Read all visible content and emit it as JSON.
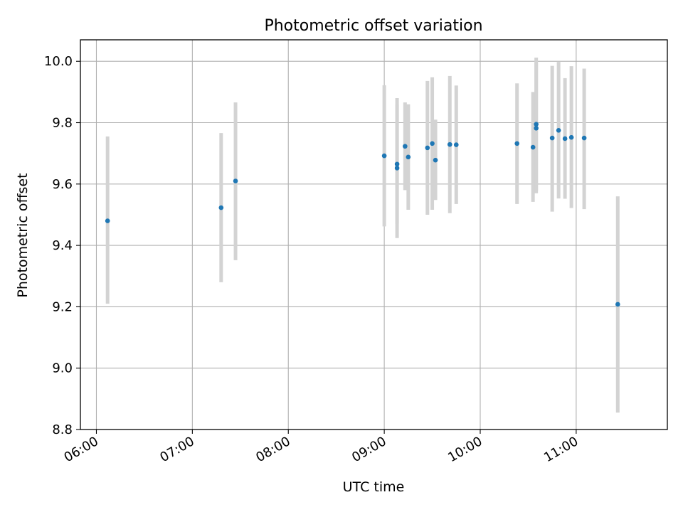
{
  "chart_data": {
    "type": "scatter",
    "title": "Photometric offset variation",
    "xlabel": "UTC time",
    "ylabel": "Photometric offset",
    "x_ticks": [
      "06:00",
      "07:00",
      "08:00",
      "09:00",
      "10:00",
      "11:00"
    ],
    "y_ticks": [
      "8.8",
      "9.0",
      "9.2",
      "9.4",
      "9.6",
      "9.8",
      "10.0"
    ],
    "xlim": [
      "05:50",
      "11:57"
    ],
    "ylim": [
      8.8,
      10.07
    ],
    "grid": true,
    "colors": {
      "point": "#1f77b4",
      "errorbar": "#d3d3d3",
      "grid": "#b0b0b0"
    },
    "points": [
      {
        "time": "06:07",
        "y": 9.48,
        "ylo": 9.21,
        "yhi": 9.755
      },
      {
        "time": "07:18",
        "y": 9.523,
        "ylo": 9.28,
        "yhi": 9.766
      },
      {
        "time": "07:27",
        "y": 9.61,
        "ylo": 9.352,
        "yhi": 9.866
      },
      {
        "time": "09:00",
        "y": 9.692,
        "ylo": 9.462,
        "yhi": 9.922
      },
      {
        "time": "09:08",
        "y": 9.665,
        "ylo": 9.471,
        "yhi": 9.859
      },
      {
        "time": "09:08",
        "y": 9.652,
        "ylo": 9.424,
        "yhi": 9.88
      },
      {
        "time": "09:13",
        "y": 9.723,
        "ylo": 9.58,
        "yhi": 9.866
      },
      {
        "time": "09:15",
        "y": 9.688,
        "ylo": 9.516,
        "yhi": 9.86
      },
      {
        "time": "09:27",
        "y": 9.718,
        "ylo": 9.5,
        "yhi": 9.936
      },
      {
        "time": "09:30",
        "y": 9.732,
        "ylo": 9.516,
        "yhi": 9.948
      },
      {
        "time": "09:32",
        "y": 9.678,
        "ylo": 9.548,
        "yhi": 9.81
      },
      {
        "time": "09:41",
        "y": 9.729,
        "ylo": 9.505,
        "yhi": 9.952
      },
      {
        "time": "09:45",
        "y": 9.728,
        "ylo": 9.535,
        "yhi": 9.921
      },
      {
        "time": "10:23",
        "y": 9.732,
        "ylo": 9.535,
        "yhi": 9.928
      },
      {
        "time": "10:33",
        "y": 9.72,
        "ylo": 9.542,
        "yhi": 9.9
      },
      {
        "time": "10:35",
        "y": 9.795,
        "ylo": 9.578,
        "yhi": 10.012
      },
      {
        "time": "10:35",
        "y": 9.782,
        "ylo": 9.57,
        "yhi": 9.994
      },
      {
        "time": "10:45",
        "y": 9.75,
        "ylo": 9.51,
        "yhi": 9.985
      },
      {
        "time": "10:49",
        "y": 9.775,
        "ylo": 9.553,
        "yhi": 9.998
      },
      {
        "time": "10:53",
        "y": 9.748,
        "ylo": 9.552,
        "yhi": 9.945
      },
      {
        "time": "10:57",
        "y": 9.752,
        "ylo": 9.522,
        "yhi": 9.984
      },
      {
        "time": "11:05",
        "y": 9.75,
        "ylo": 9.518,
        "yhi": 9.976
      },
      {
        "time": "11:26",
        "y": 9.208,
        "ylo": 8.855,
        "yhi": 9.56
      }
    ]
  }
}
